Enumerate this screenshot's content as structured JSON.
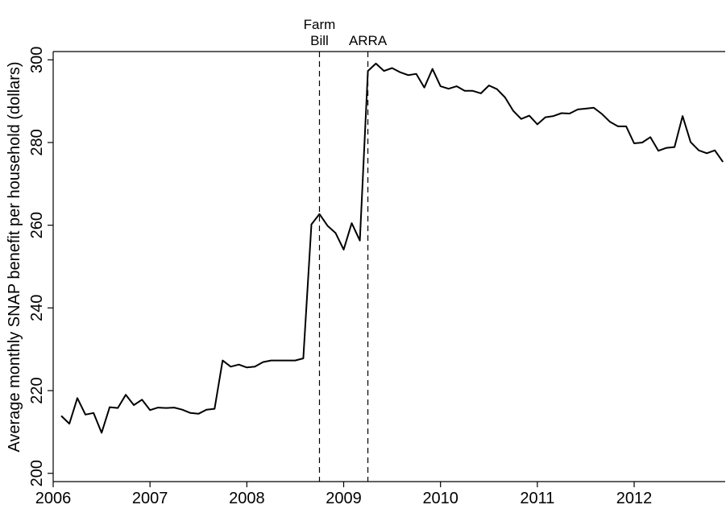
{
  "chart_data": {
    "type": "line",
    "title": "",
    "xlabel": "",
    "ylabel": "Average monthly SNAP benefit per household (dollars)",
    "xlim": [
      2006.0,
      2012.94
    ],
    "ylim": [
      198,
      302
    ],
    "xticks": [
      2006,
      2007,
      2008,
      2009,
      2010,
      2011,
      2012
    ],
    "xtick_labels": [
      "2006",
      "2007",
      "2008",
      "2009",
      "2010",
      "2011",
      "2012"
    ],
    "yticks": [
      200,
      220,
      240,
      260,
      280,
      300
    ],
    "ytick_labels": [
      "200",
      "220",
      "240",
      "260",
      "280",
      "300"
    ],
    "grid": false,
    "legend": "none",
    "line_color": "#000000",
    "series": [
      {
        "x": [
          2006.083,
          2006.167,
          2006.25,
          2006.333,
          2006.417,
          2006.5,
          2006.583,
          2006.667,
          2006.75,
          2006.833,
          2006.917,
          2007.0,
          2007.083,
          2007.167,
          2007.25,
          2007.333,
          2007.417,
          2007.5,
          2007.583,
          2007.667,
          2007.75,
          2007.833,
          2007.917,
          2008.0,
          2008.083,
          2008.167,
          2008.25,
          2008.333,
          2008.417,
          2008.5,
          2008.583,
          2008.667,
          2008.75,
          2008.833,
          2008.917,
          2009.0,
          2009.083,
          2009.167,
          2009.25,
          2009.333,
          2009.417,
          2009.5,
          2009.583,
          2009.667,
          2009.75,
          2009.833,
          2009.917,
          2010.0,
          2010.083,
          2010.167,
          2010.25,
          2010.333,
          2010.417,
          2010.5,
          2010.583,
          2010.667,
          2010.75,
          2010.833,
          2010.917,
          2011.0,
          2011.083,
          2011.167,
          2011.25,
          2011.333,
          2011.417,
          2011.5,
          2011.583,
          2011.667,
          2011.75,
          2011.833,
          2011.917,
          2012.0,
          2012.083,
          2012.167,
          2012.25,
          2012.333,
          2012.417,
          2012.5,
          2012.583,
          2012.667,
          2012.75,
          2012.833,
          2012.917
        ],
        "y": [
          213.9,
          212.0,
          218.2,
          214.2,
          214.6,
          209.8,
          216.0,
          215.8,
          219.0,
          216.5,
          217.8,
          215.3,
          215.9,
          215.8,
          215.9,
          215.4,
          214.6,
          214.4,
          215.4,
          215.6,
          227.3,
          225.8,
          226.3,
          225.6,
          225.8,
          226.9,
          227.3,
          227.3,
          227.3,
          227.3,
          227.8,
          260.2,
          262.7,
          259.9,
          258.1,
          254.1,
          260.5,
          256.3,
          297.3,
          299.1,
          297.3,
          298.0,
          297.0,
          296.3,
          296.6,
          293.3,
          297.8,
          293.6,
          293.0,
          293.6,
          292.5,
          292.5,
          291.9,
          293.8,
          292.9,
          290.9,
          287.7,
          285.7,
          286.5,
          284.4,
          286.1,
          286.4,
          287.1,
          287.0,
          288.0,
          288.2,
          288.4,
          286.9,
          285.0,
          283.9,
          283.9,
          279.8,
          280.0,
          281.3,
          278.0,
          278.7,
          278.9,
          286.4,
          280.1,
          278.1,
          277.4,
          278.1,
          275.3
        ]
      }
    ],
    "annotations": [
      {
        "x": 2008.75,
        "lines": [
          "Farm",
          "Bill"
        ],
        "style": "dashed-vertical"
      },
      {
        "x": 2009.25,
        "lines": [
          "ARRA"
        ],
        "style": "dashed-vertical"
      }
    ]
  }
}
